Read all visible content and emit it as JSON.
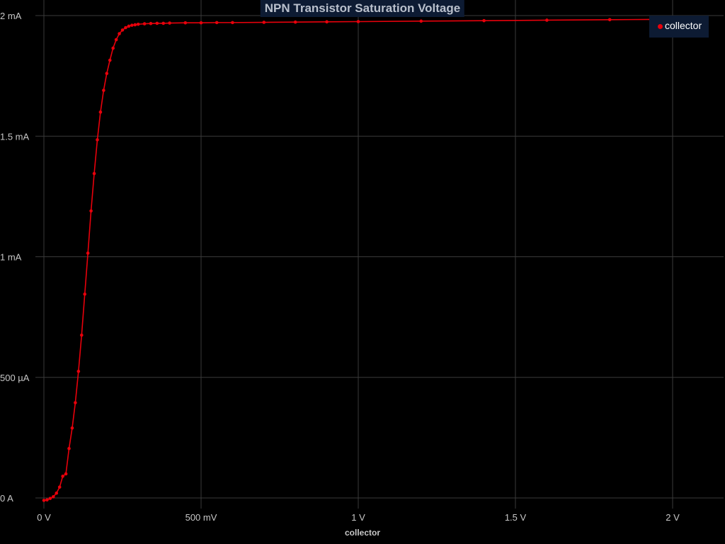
{
  "chart_data": {
    "type": "line",
    "title": "NPN Transistor Saturation Voltage",
    "xlabel": "collector",
    "ylabel": "",
    "xlim": [
      0,
      2.15
    ],
    "ylim": [
      0,
      0.002
    ],
    "x_ticks": [
      {
        "value": 0,
        "label": "0 V"
      },
      {
        "value": 0.5,
        "label": "500 mV"
      },
      {
        "value": 1.0,
        "label": "1 V"
      },
      {
        "value": 1.5,
        "label": "1.5 V"
      },
      {
        "value": 2.0,
        "label": "2 V"
      }
    ],
    "y_ticks": [
      {
        "value": 0,
        "label": "0 A"
      },
      {
        "value": 0.0005,
        "label": "500 µA"
      },
      {
        "value": 0.001,
        "label": "1 mA"
      },
      {
        "value": 0.0015,
        "label": "1.5 mA"
      },
      {
        "value": 0.002,
        "label": "2 mA"
      }
    ],
    "grid": true,
    "legend_position": "top-right",
    "series": [
      {
        "name": "collector",
        "color": "#e8000b",
        "x": [
          0,
          0.01,
          0.02,
          0.03,
          0.04,
          0.05,
          0.06,
          0.07,
          0.08,
          0.09,
          0.1,
          0.11,
          0.12,
          0.13,
          0.14,
          0.15,
          0.16,
          0.17,
          0.18,
          0.19,
          0.2,
          0.21,
          0.22,
          0.23,
          0.24,
          0.25,
          0.26,
          0.27,
          0.28,
          0.29,
          0.3,
          0.32,
          0.34,
          0.36,
          0.38,
          0.4,
          0.45,
          0.5,
          0.55,
          0.6,
          0.7,
          0.8,
          0.9,
          1.0,
          1.2,
          1.4,
          1.6,
          1.8,
          1.93
        ],
        "y": [
          -1e-05,
          -8e-06,
          -2e-06,
          5e-06,
          2e-05,
          4.5e-05,
          9e-05,
          0.0001,
          0.000205,
          0.00029,
          0.000395,
          0.000525,
          0.000675,
          0.000845,
          0.001015,
          0.00119,
          0.001345,
          0.001485,
          0.0016,
          0.00169,
          0.00176,
          0.001815,
          0.001865,
          0.0019,
          0.001925,
          0.00194,
          0.00195,
          0.001956,
          0.00196,
          0.001962,
          0.001964,
          0.001966,
          0.001967,
          0.001968,
          0.001968,
          0.001969,
          0.00197,
          0.00197,
          0.001971,
          0.001971,
          0.001972,
          0.001973,
          0.001974,
          0.001975,
          0.001977,
          0.001979,
          0.001981,
          0.001983,
          0.001984
        ]
      }
    ]
  }
}
